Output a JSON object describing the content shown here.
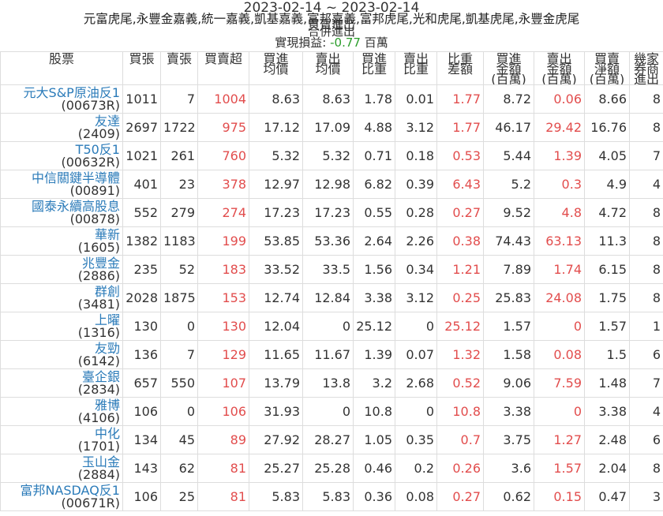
{
  "header": {
    "date_range": "2023-02-14 ~ 2023-02-14",
    "branches": "元富虎尾,永豐金嘉義,統一嘉義,凱基嘉義,富邦嘉義,富邦虎尾,光和虎尾,凱基虎尾,永豐金虎尾",
    "subtitle": "買賣進出",
    "subtitle2": "合併進出",
    "pnl_label": "實現損益:",
    "pnl_value": -0.77,
    "pnl_unit": "百萬"
  },
  "table": {
    "columns": [
      [
        "股票"
      ],
      [
        "買張"
      ],
      [
        "賣張"
      ],
      [
        "買賣超"
      ],
      [
        "買進",
        "均價"
      ],
      [
        "賣出",
        "均價"
      ],
      [
        "買進",
        "比重"
      ],
      [
        "賣出",
        "比重"
      ],
      [
        "比重",
        "差額"
      ],
      [
        "買進",
        "金額",
        "(百萬)"
      ],
      [
        "賣出",
        "金額",
        "(百萬)"
      ],
      [
        "買賣",
        "淨額",
        "(百萬)"
      ],
      [
        "幾家",
        "券商",
        "進出"
      ]
    ],
    "rows": [
      {
        "name": "元大S&P原油反1",
        "code": "(00673R)",
        "values": [
          1011,
          7,
          1004,
          8.63,
          8.63,
          1.78,
          0.01,
          1.77,
          8.72,
          0.06,
          8.66,
          8
        ]
      },
      {
        "name": "友達",
        "code": "(2409)",
        "values": [
          2697,
          1722,
          975,
          17.12,
          17.09,
          4.88,
          3.12,
          1.77,
          46.17,
          29.42,
          16.76,
          8
        ]
      },
      {
        "name": "T50反1",
        "code": "(00632R)",
        "values": [
          1021,
          261,
          760,
          5.32,
          5.32,
          0.71,
          0.18,
          0.53,
          5.44,
          1.39,
          4.05,
          7
        ]
      },
      {
        "name": "中信關鍵半導體",
        "code": "(00891)",
        "values": [
          401,
          23,
          378,
          12.97,
          12.98,
          6.82,
          0.39,
          6.43,
          5.2,
          0.3,
          4.9,
          4
        ]
      },
      {
        "name": "國泰永續高股息",
        "code": "(00878)",
        "values": [
          552,
          279,
          274,
          17.23,
          17.23,
          0.55,
          0.28,
          0.27,
          9.52,
          4.8,
          4.72,
          8
        ]
      },
      {
        "name": "華新",
        "code": "(1605)",
        "values": [
          1382,
          1183,
          199,
          53.85,
          53.36,
          2.64,
          2.26,
          0.38,
          74.43,
          63.13,
          11.3,
          8
        ]
      },
      {
        "name": "兆豐金",
        "code": "(2886)",
        "values": [
          235,
          52,
          183,
          33.52,
          33.5,
          1.56,
          0.34,
          1.21,
          7.89,
          1.74,
          6.15,
          8
        ]
      },
      {
        "name": "群創",
        "code": "(3481)",
        "values": [
          2028,
          1875,
          153,
          12.74,
          12.84,
          3.38,
          3.12,
          0.25,
          25.83,
          24.08,
          1.75,
          8
        ]
      },
      {
        "name": "上曜",
        "code": "(1316)",
        "values": [
          130,
          0,
          130,
          12.04,
          0,
          25.12,
          0,
          25.12,
          1.57,
          0,
          1.57,
          1
        ]
      },
      {
        "name": "友勁",
        "code": "(6142)",
        "values": [
          136,
          7,
          129,
          11.65,
          11.67,
          1.39,
          0.07,
          1.32,
          1.58,
          0.08,
          1.5,
          6
        ]
      },
      {
        "name": "臺企銀",
        "code": "(2834)",
        "values": [
          657,
          550,
          107,
          13.79,
          13.8,
          3.2,
          2.68,
          0.52,
          9.06,
          7.59,
          1.48,
          7
        ]
      },
      {
        "name": "雅博",
        "code": "(4106)",
        "values": [
          106,
          0,
          106,
          31.93,
          0,
          10.8,
          0,
          10.8,
          3.38,
          0,
          3.38,
          4
        ]
      },
      {
        "name": "中化",
        "code": "(1701)",
        "values": [
          134,
          45,
          89,
          27.92,
          28.27,
          1.05,
          0.35,
          0.7,
          3.75,
          1.27,
          2.48,
          6
        ]
      },
      {
        "name": "玉山金",
        "code": "(2884)",
        "values": [
          143,
          62,
          81,
          25.27,
          25.28,
          0.46,
          0.2,
          0.26,
          3.6,
          1.57,
          2.04,
          8
        ]
      },
      {
        "name": "富邦NASDAQ反1",
        "code": "(00671R)",
        "values": [
          106,
          25,
          81,
          5.83,
          5.83,
          0.36,
          0.08,
          0.27,
          0.62,
          0.15,
          0.47,
          3
        ]
      }
    ]
  }
}
